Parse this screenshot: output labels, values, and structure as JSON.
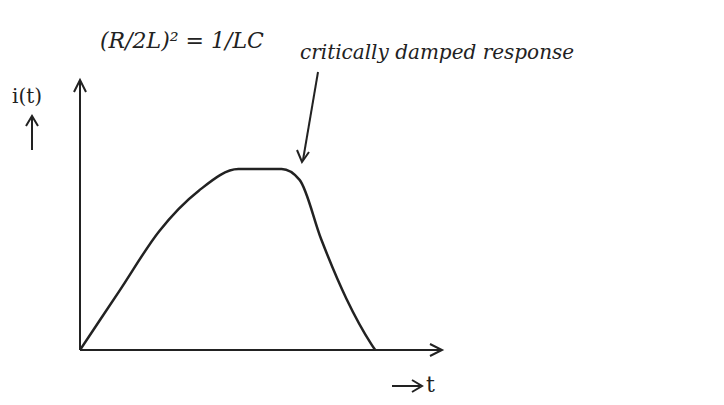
{
  "chart_data": {
    "type": "line",
    "x": [
      0,
      1.1,
      2.2,
      3.3,
      4.4,
      5.6,
      6.1,
      6.7,
      7.4,
      8.1,
      8.2
    ],
    "values": [
      0,
      2.2,
      4.4,
      5.9,
      6.7,
      6.7,
      6.3,
      4.1,
      1.9,
      0.2,
      0
    ],
    "color": "#222222",
    "xlim": [
      0,
      10
    ],
    "ylim": [
      0,
      10
    ],
    "tick_labels": false,
    "xlabel": "t",
    "ylabel": "i(t)",
    "annotations": [
      "(R/2L)² = 1/LC",
      "critically damped response"
    ]
  }
}
